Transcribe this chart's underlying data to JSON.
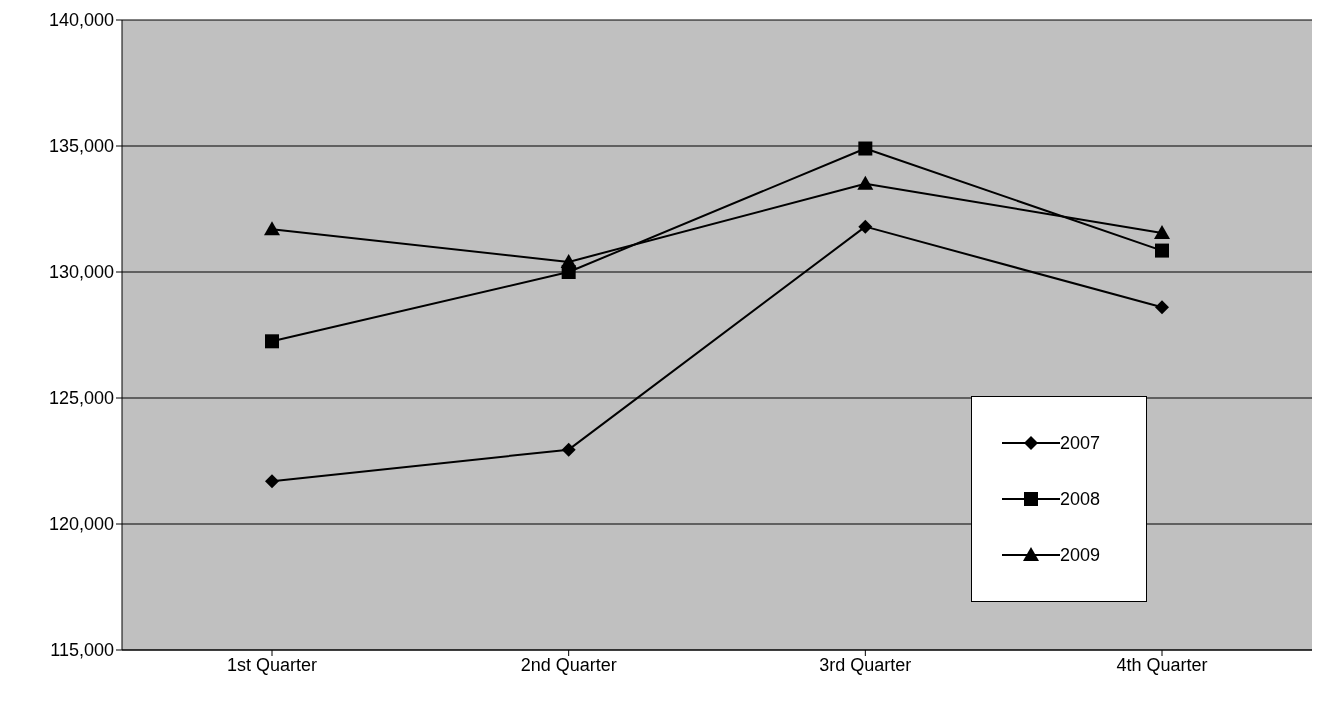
{
  "chart_data": {
    "type": "line",
    "categories": [
      "1st Quarter",
      "2nd Quarter",
      "3rd Quarter",
      "4th Quarter"
    ],
    "series": [
      {
        "name": "2007",
        "color": "#000000",
        "marker": "diamond",
        "values": [
          121700,
          122950,
          131800,
          128600
        ]
      },
      {
        "name": "2008",
        "color": "#000000",
        "marker": "square",
        "values": [
          127250,
          130000,
          134900,
          130850
        ]
      },
      {
        "name": "2009",
        "color": "#000000",
        "marker": "triangle",
        "values": [
          131700,
          130400,
          133500,
          131550
        ]
      }
    ],
    "ylim": [
      115000,
      140000
    ],
    "yticks": [
      {
        "value": 115000,
        "label": "115,000"
      },
      {
        "value": 120000,
        "label": "120,000"
      },
      {
        "value": 125000,
        "label": "125,000"
      },
      {
        "value": 130000,
        "label": "130,000"
      },
      {
        "value": 135000,
        "label": "135,000"
      },
      {
        "value": 140000,
        "label": "140,000"
      }
    ],
    "grid": "y",
    "legend": "bottom right",
    "line_style": "solid"
  }
}
